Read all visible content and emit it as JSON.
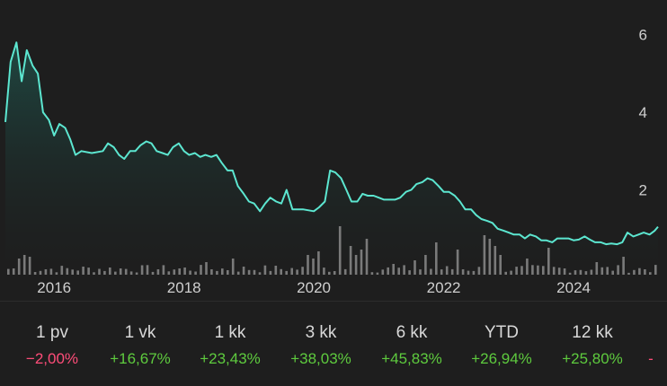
{
  "chart_data": {
    "type": "line",
    "title": "",
    "xlabel": "",
    "ylabel": "",
    "x_ticks": [
      "2016",
      "2018",
      "2020",
      "2022",
      "2024"
    ],
    "y_ticks": [
      "2",
      "4",
      "6"
    ],
    "ylim": [
      0,
      6.5
    ],
    "xlim": [
      2015.25,
      2025.3
    ],
    "grid": false,
    "line_color": "#5ce6d0",
    "volume_color": "#7a7a7a",
    "series": [
      {
        "values": [
          [
            2015.25,
            3.75
          ],
          [
            2015.33,
            5.3
          ],
          [
            2015.42,
            5.8
          ],
          [
            2015.5,
            4.8
          ],
          [
            2015.58,
            5.6
          ],
          [
            2015.67,
            5.2
          ],
          [
            2015.75,
            5.0
          ],
          [
            2015.83,
            4.0
          ],
          [
            2015.92,
            3.8
          ],
          [
            2016.0,
            3.4
          ],
          [
            2016.08,
            3.7
          ],
          [
            2016.17,
            3.6
          ],
          [
            2016.25,
            3.3
          ],
          [
            2016.33,
            2.9
          ],
          [
            2016.42,
            3.0
          ],
          [
            2016.58,
            2.95
          ],
          [
            2016.75,
            3.0
          ],
          [
            2016.83,
            3.2
          ],
          [
            2016.92,
            3.1
          ],
          [
            2017.0,
            2.9
          ],
          [
            2017.08,
            2.8
          ],
          [
            2017.17,
            3.0
          ],
          [
            2017.25,
            3.0
          ],
          [
            2017.33,
            3.15
          ],
          [
            2017.42,
            3.25
          ],
          [
            2017.5,
            3.2
          ],
          [
            2017.58,
            3.0
          ],
          [
            2017.67,
            2.95
          ],
          [
            2017.75,
            2.9
          ],
          [
            2017.83,
            3.1
          ],
          [
            2017.92,
            3.2
          ],
          [
            2018.0,
            3.0
          ],
          [
            2018.08,
            2.9
          ],
          [
            2018.17,
            2.95
          ],
          [
            2018.25,
            2.85
          ],
          [
            2018.33,
            2.9
          ],
          [
            2018.42,
            2.85
          ],
          [
            2018.5,
            2.9
          ],
          [
            2018.58,
            2.7
          ],
          [
            2018.67,
            2.5
          ],
          [
            2018.75,
            2.5
          ],
          [
            2018.83,
            2.1
          ],
          [
            2018.92,
            1.9
          ],
          [
            2019.0,
            1.7
          ],
          [
            2019.08,
            1.65
          ],
          [
            2019.17,
            1.45
          ],
          [
            2019.25,
            1.65
          ],
          [
            2019.33,
            1.8
          ],
          [
            2019.42,
            1.7
          ],
          [
            2019.5,
            1.65
          ],
          [
            2019.58,
            2.0
          ],
          [
            2019.67,
            1.5
          ],
          [
            2019.83,
            1.5
          ],
          [
            2020.0,
            1.45
          ],
          [
            2020.08,
            1.55
          ],
          [
            2020.17,
            1.7
          ],
          [
            2020.25,
            2.5
          ],
          [
            2020.33,
            2.45
          ],
          [
            2020.42,
            2.3
          ],
          [
            2020.5,
            2.0
          ],
          [
            2020.58,
            1.7
          ],
          [
            2020.67,
            1.7
          ],
          [
            2020.75,
            1.9
          ],
          [
            2020.83,
            1.85
          ],
          [
            2020.92,
            1.85
          ],
          [
            2021.0,
            1.8
          ],
          [
            2021.08,
            1.75
          ],
          [
            2021.17,
            1.75
          ],
          [
            2021.25,
            1.75
          ],
          [
            2021.33,
            1.8
          ],
          [
            2021.42,
            1.95
          ],
          [
            2021.5,
            2.0
          ],
          [
            2021.58,
            2.15
          ],
          [
            2021.67,
            2.2
          ],
          [
            2021.75,
            2.3
          ],
          [
            2021.83,
            2.25
          ],
          [
            2021.92,
            2.1
          ],
          [
            2022.0,
            1.95
          ],
          [
            2022.08,
            1.95
          ],
          [
            2022.17,
            1.85
          ],
          [
            2022.25,
            1.7
          ],
          [
            2022.33,
            1.5
          ],
          [
            2022.42,
            1.5
          ],
          [
            2022.5,
            1.35
          ],
          [
            2022.58,
            1.25
          ],
          [
            2022.67,
            1.2
          ],
          [
            2022.75,
            1.15
          ],
          [
            2022.83,
            1.0
          ],
          [
            2022.92,
            0.95
          ],
          [
            2023.0,
            0.9
          ],
          [
            2023.08,
            0.85
          ],
          [
            2023.17,
            0.85
          ],
          [
            2023.25,
            0.75
          ],
          [
            2023.33,
            0.85
          ],
          [
            2023.42,
            0.8
          ],
          [
            2023.5,
            0.7
          ],
          [
            2023.58,
            0.7
          ],
          [
            2023.67,
            0.65
          ],
          [
            2023.75,
            0.75
          ],
          [
            2023.83,
            0.75
          ],
          [
            2023.92,
            0.75
          ],
          [
            2024.0,
            0.7
          ],
          [
            2024.08,
            0.72
          ],
          [
            2024.17,
            0.8
          ],
          [
            2024.25,
            0.72
          ],
          [
            2024.33,
            0.65
          ],
          [
            2024.42,
            0.65
          ],
          [
            2024.5,
            0.6
          ],
          [
            2024.58,
            0.62
          ],
          [
            2024.67,
            0.6
          ],
          [
            2024.75,
            0.65
          ],
          [
            2024.83,
            0.9
          ],
          [
            2024.92,
            0.8
          ],
          [
            2025.0,
            0.85
          ],
          [
            2025.08,
            0.9
          ],
          [
            2025.17,
            0.85
          ],
          [
            2025.25,
            0.95
          ],
          [
            2025.3,
            1.05
          ]
        ]
      }
    ]
  },
  "performance": [
    {
      "label": "1 pv",
      "value": "−2,00%",
      "color": "#ff4d79"
    },
    {
      "label": "1 vk",
      "value": "+16,67%",
      "color": "#5ecb3e"
    },
    {
      "label": "1 kk",
      "value": "+23,43%",
      "color": "#5ecb3e"
    },
    {
      "label": "3 kk",
      "value": "+38,03%",
      "color": "#5ecb3e"
    },
    {
      "label": "6 kk",
      "value": "+45,83%",
      "color": "#5ecb3e"
    },
    {
      "label": "YTD",
      "value": "+26,94%",
      "color": "#5ecb3e"
    },
    {
      "label": "12 kk",
      "value": "+25,80%",
      "color": "#5ecb3e"
    },
    {
      "label": "",
      "value": "-",
      "color": "#ff4d79"
    }
  ]
}
